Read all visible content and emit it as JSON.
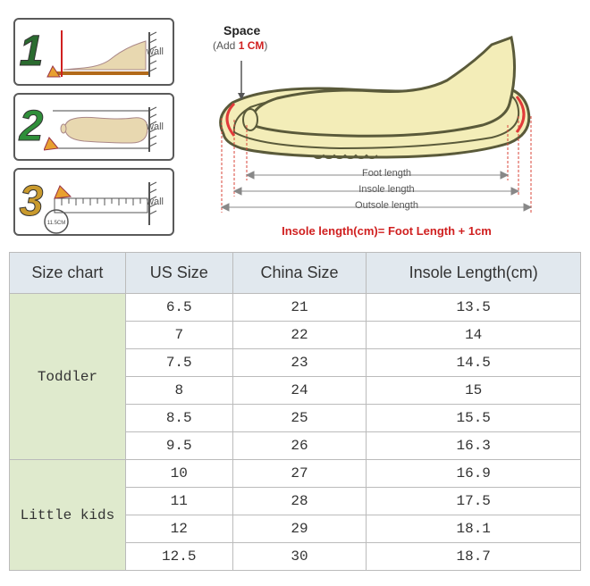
{
  "steps": {
    "label_wall": "wall",
    "numbers": [
      "1",
      "2",
      "3"
    ],
    "colors": [
      "#2a6b2f",
      "#2f8f3a",
      "#c99a2d"
    ],
    "ruler_reading": "11.5CM"
  },
  "diagram": {
    "space_label": "Space",
    "space_sub_prefix": "(Add ",
    "space_sub_value": "1 CM",
    "space_sub_suffix": ")",
    "foot_length": "Foot length",
    "insole_length": "Insole length",
    "outsole_length": "Outsole length",
    "formula": "Insole length(cm)= Foot Length + 1cm",
    "shoe_fill": "#f3edb8",
    "shoe_stroke": "#5a5a3a",
    "guide_color": "#d8443a",
    "arc_color": "#e23a3a"
  },
  "table": {
    "headers": [
      "Size chart",
      "US Size",
      "China Size",
      "Insole Length(cm)"
    ],
    "groups": [
      {
        "name": "Toddler",
        "rows": [
          {
            "us": "6.5",
            "china": "21",
            "insole": "13.5"
          },
          {
            "us": "7",
            "china": "22",
            "insole": "14"
          },
          {
            "us": "7.5",
            "china": "23",
            "insole": "14.5"
          },
          {
            "us": "8",
            "china": "24",
            "insole": "15"
          },
          {
            "us": "8.5",
            "china": "25",
            "insole": "15.5"
          },
          {
            "us": "9.5",
            "china": "26",
            "insole": "16.3"
          }
        ]
      },
      {
        "name": "Little kids",
        "rows": [
          {
            "us": "10",
            "china": "27",
            "insole": "16.9"
          },
          {
            "us": "11",
            "china": "28",
            "insole": "17.5"
          },
          {
            "us": "12",
            "china": "29",
            "insole": "18.1"
          },
          {
            "us": "12.5",
            "china": "30",
            "insole": "18.7"
          }
        ]
      }
    ]
  }
}
